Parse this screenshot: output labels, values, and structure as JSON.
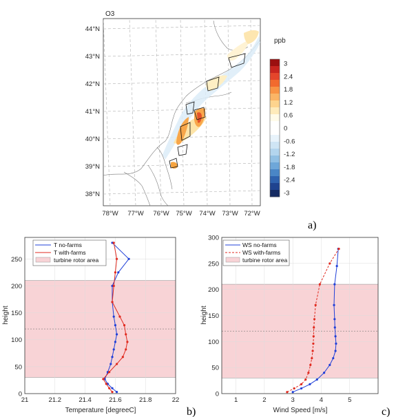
{
  "panels": {
    "a": "a)",
    "b": "b)",
    "c": "c)"
  },
  "chart_data": [
    {
      "type": "heatmap",
      "title": "O3",
      "colorbar_label": "ppb",
      "colorbar_ticks": [
        "3",
        "2.4",
        "1.8",
        "1.2",
        "0.6",
        "0",
        "-0.6",
        "-1.2",
        "-1.8",
        "-2.4",
        "-3"
      ],
      "colorbar_colors": [
        "#9b1010",
        "#c8251f",
        "#e4452b",
        "#f26a2e",
        "#f99445",
        "#fbb566",
        "#fdd48e",
        "#feebbb",
        "#fffbe9",
        "#ffffff",
        "#ffffff",
        "#e8f3fb",
        "#cfe5f5",
        "#b3d5ee",
        "#91c0e4",
        "#6ea7d9",
        "#4a86c6",
        "#2f62ae",
        "#1f438f",
        "#152a62"
      ],
      "lat_ticks": [
        "44°N",
        "43°N",
        "42°N",
        "41°N",
        "40°N",
        "39°N",
        "38°N"
      ],
      "lon_ticks": [
        "78°W",
        "77°W",
        "76°W",
        "75°W",
        "74°W",
        "73°W",
        "72°W"
      ]
    },
    {
      "type": "line",
      "xlabel": "Temperature [degreeC]",
      "ylabel": "height",
      "xlim": [
        21,
        22
      ],
      "ylim": [
        0,
        290
      ],
      "xticks": [
        "21",
        "21.2",
        "21.4",
        "21.6",
        "21.8",
        "22"
      ],
      "yticks": [
        "0",
        "50",
        "100",
        "150",
        "200",
        "250"
      ],
      "legend": [
        "T no-farms",
        "T with-farms",
        "turbine rotor area"
      ],
      "rotor_band": [
        30,
        210
      ],
      "hub_height": 120,
      "colors": {
        "no_farms": "#1f3fd8",
        "with_farms": "#e02a1f",
        "band": "#f8d3d6"
      },
      "series": [
        {
          "name": "T no-farms",
          "x": [
            21.61,
            21.58,
            21.55,
            21.53,
            21.55,
            21.57,
            21.58,
            21.59,
            21.6,
            21.61,
            21.6,
            21.59,
            21.58,
            21.58,
            21.62,
            21.69,
            21.58
          ],
          "y": [
            3,
            10,
            18,
            27,
            40,
            55,
            68,
            82,
            96,
            110,
            127,
            143,
            170,
            200,
            225,
            250,
            280
          ]
        },
        {
          "name": "T with-farms",
          "x": [
            21.58,
            21.56,
            21.54,
            21.52,
            21.56,
            21.61,
            21.65,
            21.67,
            21.68,
            21.67,
            21.66,
            21.63,
            21.58,
            21.59,
            21.6,
            21.61,
            21.59
          ],
          "y": [
            3,
            10,
            18,
            27,
            40,
            55,
            68,
            82,
            96,
            110,
            127,
            143,
            170,
            200,
            225,
            250,
            280
          ]
        }
      ]
    },
    {
      "type": "line",
      "xlabel": "Wind Speed [m/s]",
      "ylabel": "height",
      "xlim": [
        0.5,
        6
      ],
      "ylim": [
        0,
        300
      ],
      "xticks": [
        "1",
        "2",
        "3",
        "4",
        "5"
      ],
      "yticks": [
        "0",
        "50",
        "100",
        "150",
        "200",
        "250",
        "300"
      ],
      "legend": [
        "WS no-farms",
        "WS with-farms",
        "turbine rotor area"
      ],
      "rotor_band": [
        30,
        210
      ],
      "hub_height": 120,
      "colors": {
        "no_farms": "#1f3fd8",
        "with_farms": "#e02a1f",
        "band": "#f8d3d6"
      },
      "series": [
        {
          "name": "WS no-farms",
          "x": [
            3.0,
            3.3,
            3.6,
            3.85,
            4.1,
            4.3,
            4.42,
            4.5,
            4.52,
            4.5,
            4.48,
            4.47,
            4.45,
            4.47,
            4.55,
            4.6
          ],
          "y": [
            3,
            10,
            18,
            27,
            40,
            55,
            68,
            82,
            96,
            110,
            127,
            143,
            170,
            210,
            245,
            278
          ]
        },
        {
          "name": "WS with-farms",
          "x": [
            2.8,
            3.05,
            3.3,
            3.45,
            3.55,
            3.62,
            3.67,
            3.7,
            3.72,
            3.73,
            3.74,
            3.76,
            3.8,
            3.95,
            4.3,
            4.62
          ],
          "y": [
            3,
            10,
            18,
            27,
            40,
            55,
            68,
            82,
            96,
            110,
            127,
            143,
            170,
            210,
            250,
            278
          ]
        }
      ]
    }
  ]
}
